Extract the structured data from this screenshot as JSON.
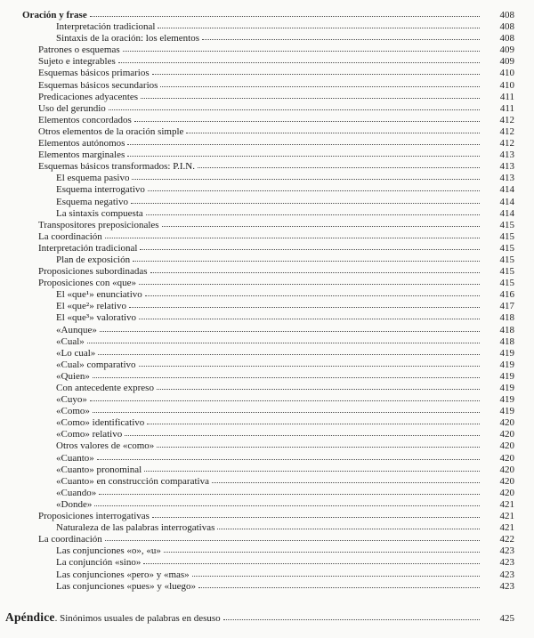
{
  "document": {
    "kind": "book-table-of-contents-page",
    "language": "es",
    "text_color": "#1c1c1c",
    "paper_color": "#fafaf8",
    "leader_style": "dotted"
  },
  "toc": {
    "entries": [
      {
        "b": "Oración y frase",
        "t": "",
        "page": "408",
        "lvl": 0
      },
      {
        "b": "",
        "t": "Interpretación tradicional",
        "page": "408",
        "lvl": 2
      },
      {
        "b": "",
        "t": "Sintaxis de la oración: los elementos",
        "page": "408",
        "lvl": 2
      },
      {
        "b": "",
        "t": "Patrones o esquemas",
        "page": "409",
        "lvl": 1
      },
      {
        "b": "",
        "t": "Sujeto e integrables",
        "page": "409",
        "lvl": 1
      },
      {
        "b": "",
        "t": "Esquemas básicos primarios",
        "page": "410",
        "lvl": 1
      },
      {
        "b": "",
        "t": "Esquemas básicos secundarios",
        "page": "410",
        "lvl": 1
      },
      {
        "b": "",
        "t": "Predicaciones adyacentes",
        "page": "411",
        "lvl": 1
      },
      {
        "b": "",
        "t": "Uso del gerundio",
        "page": "411",
        "lvl": 1
      },
      {
        "b": "",
        "t": "Elementos concordados",
        "page": "412",
        "lvl": 1
      },
      {
        "b": "",
        "t": "Otros elementos de la oración simple",
        "page": "412",
        "lvl": 1
      },
      {
        "b": "",
        "t": "Elementos autónomos",
        "page": "412",
        "lvl": 1
      },
      {
        "b": "",
        "t": "Elementos marginales",
        "page": "413",
        "lvl": 1
      },
      {
        "b": "",
        "t": "Esquemas básicos transformados: P.I.N.",
        "page": "413",
        "lvl": 1
      },
      {
        "b": "",
        "t": "El esquema pasivo",
        "page": "413",
        "lvl": 2
      },
      {
        "b": "",
        "t": "Esquema interrogativo",
        "page": "414",
        "lvl": 2
      },
      {
        "b": "",
        "t": "Esquema negativo",
        "page": "414",
        "lvl": 2
      },
      {
        "b": "",
        "t": "La sintaxis compuesta",
        "page": "414",
        "lvl": 2
      },
      {
        "b": "",
        "t": "Transpositores preposicionales",
        "page": "415",
        "lvl": 1
      },
      {
        "b": "",
        "t": "La coordinación",
        "page": "415",
        "lvl": 1
      },
      {
        "b": "",
        "t": "Interpretación tradicional",
        "page": "415",
        "lvl": 1
      },
      {
        "b": "",
        "t": "Plan de exposición",
        "page": "415",
        "lvl": 2
      },
      {
        "b": "",
        "t": "Proposiciones subordinadas",
        "page": "415",
        "lvl": 1
      },
      {
        "b": "",
        "t": "Proposiciones con «que»",
        "page": "415",
        "lvl": 1
      },
      {
        "b": "",
        "t": "El «que¹» enunciativo",
        "page": "416",
        "lvl": 2
      },
      {
        "b": "",
        "t": "El «que²» relativo",
        "page": "417",
        "lvl": 2
      },
      {
        "b": "",
        "t": "El «que³» valorativo",
        "page": "418",
        "lvl": 2
      },
      {
        "b": "",
        "t": "«Aunque»",
        "page": "418",
        "lvl": 2
      },
      {
        "b": "",
        "t": "«Cual»",
        "page": "418",
        "lvl": 2
      },
      {
        "b": "",
        "t": "«Lo cual»",
        "page": "419",
        "lvl": 2
      },
      {
        "b": "",
        "t": "«Cual» comparativo",
        "page": "419",
        "lvl": 2
      },
      {
        "b": "",
        "t": "«Quien»",
        "page": "419",
        "lvl": 2
      },
      {
        "b": "",
        "t": "Con antecedente expreso",
        "page": "419",
        "lvl": 2
      },
      {
        "b": "",
        "t": "«Cuyo»",
        "page": "419",
        "lvl": 2
      },
      {
        "b": "",
        "t": "«Como»",
        "page": "419",
        "lvl": 2
      },
      {
        "b": "",
        "t": "«Como» identificativo",
        "page": "420",
        "lvl": 2
      },
      {
        "b": "",
        "t": "«Como» relativo",
        "page": "420",
        "lvl": 2
      },
      {
        "b": "",
        "t": "Otros valores de «como»",
        "page": "420",
        "lvl": 2
      },
      {
        "b": "",
        "t": "«Cuanto»",
        "page": "420",
        "lvl": 2
      },
      {
        "b": "",
        "t": "«Cuanto» pronominal",
        "page": "420",
        "lvl": 2
      },
      {
        "b": "",
        "t": "«Cuanto» en construcción comparativa",
        "page": "420",
        "lvl": 2
      },
      {
        "b": "",
        "t": "«Cuando»",
        "page": "420",
        "lvl": 2
      },
      {
        "b": "",
        "t": "«Donde»",
        "page": "421",
        "lvl": 2
      },
      {
        "b": "",
        "t": "Proposiciones interrogativas",
        "page": "421",
        "lvl": 1
      },
      {
        "b": "",
        "t": "Naturaleza de las palabras interrogativas",
        "page": "421",
        "lvl": 2
      },
      {
        "b": "",
        "t": "La coordinación",
        "page": "422",
        "lvl": 1
      },
      {
        "b": "",
        "t": "Las conjunciones «o», «u»",
        "page": "423",
        "lvl": 2
      },
      {
        "b": "",
        "t": "La conjunción «sino»",
        "page": "423",
        "lvl": 2
      },
      {
        "b": "",
        "t": "Las conjunciones «pero» y «mas»",
        "page": "423",
        "lvl": 2
      },
      {
        "b": "",
        "t": "Las conjunciones «pues» y «luego»",
        "page": "423",
        "lvl": 2
      },
      {
        "b": "Apéndice",
        "t": ". Sinónimos usuales de palabras en desuso",
        "page": "425",
        "lvl": "app"
      }
    ]
  }
}
